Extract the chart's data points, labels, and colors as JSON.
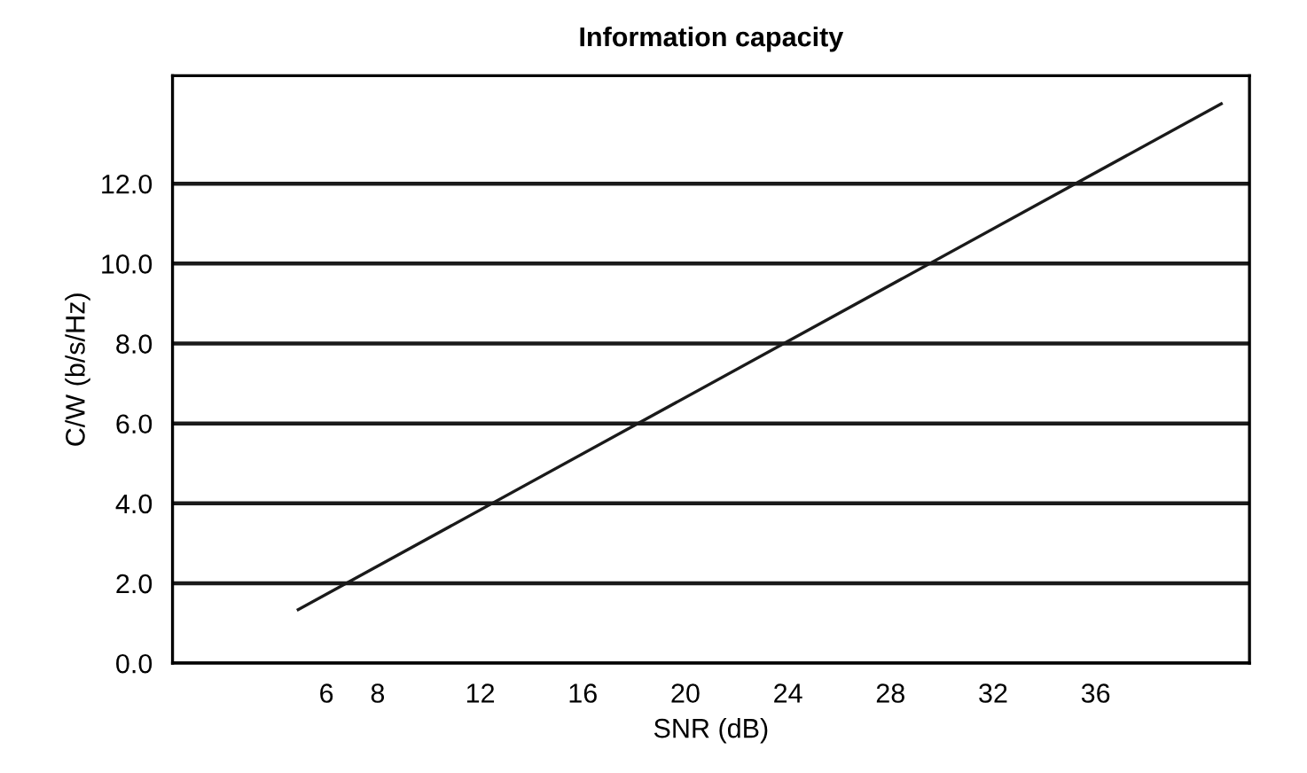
{
  "chart_data": {
    "type": "line",
    "title": "Information capacity",
    "xlabel": "SNR (dB)",
    "ylabel": "C/W (b/s/Hz)",
    "x": [
      4.9,
      40.9
    ],
    "series": [
      {
        "color": "#1a1a1a",
        "values": [
          1.34,
          14.0
        ]
      }
    ],
    "xlim": [
      0,
      42
    ],
    "xticks": [
      6,
      8,
      12,
      16,
      20,
      24,
      28,
      32,
      36
    ],
    "ylim": [
      0,
      14.7
    ],
    "yticks": [
      {
        "value": 0,
        "label": "0.0"
      },
      {
        "value": 2,
        "label": "2.0"
      },
      {
        "value": 4,
        "label": "4.0"
      },
      {
        "value": 6,
        "label": "6.0"
      },
      {
        "value": 8,
        "label": "8.0"
      },
      {
        "value": 10,
        "label": "10.0"
      },
      {
        "value": 12,
        "label": "12.0"
      }
    ],
    "grid": "y",
    "marker": "none",
    "line_style": "solid"
  }
}
